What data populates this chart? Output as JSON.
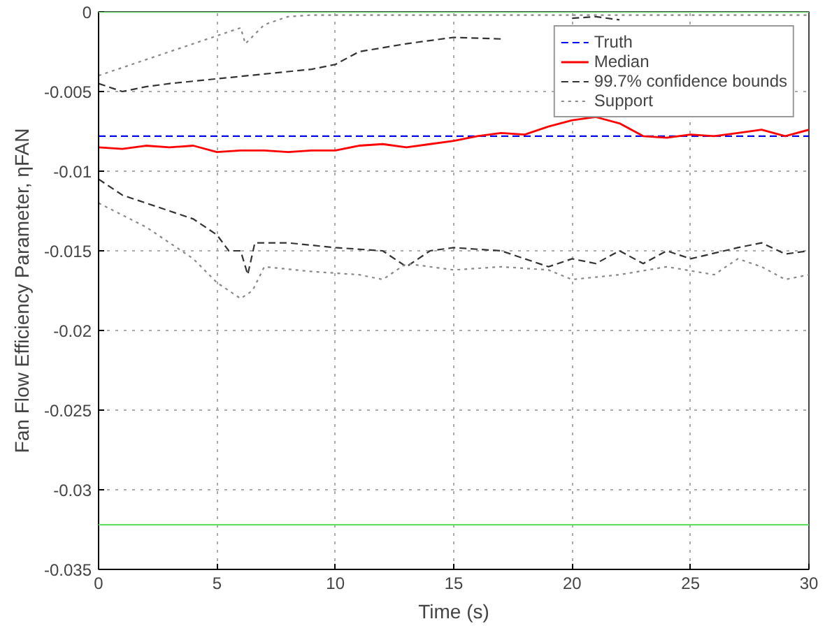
{
  "chart_data": {
    "type": "line",
    "xlabel": "Time (s)",
    "ylabel": "Fan Flow Efficiency Parameter, ηFAN",
    "xlim": [
      0,
      30
    ],
    "ylim": [
      -0.035,
      0
    ],
    "xticks": [
      0,
      5,
      10,
      15,
      20,
      25,
      30
    ],
    "yticks": [
      -0.035,
      -0.03,
      -0.025,
      -0.02,
      -0.015,
      -0.01,
      -0.005,
      0
    ],
    "grid": true,
    "legend": "top right",
    "ref_lines": [
      {
        "axis": "y",
        "value": 0,
        "color": "#66dd66"
      },
      {
        "axis": "y",
        "value": -0.0322,
        "color": "#66dd66"
      }
    ],
    "series": [
      {
        "name": "Truth",
        "color": "#0000ff",
        "line_style": "dashed",
        "x": [
          0,
          30
        ],
        "values": [
          -0.0078,
          -0.0078
        ]
      },
      {
        "name": "Median",
        "color": "#ff0000",
        "line_style": "solid",
        "x": [
          0,
          1,
          2,
          3,
          4,
          5,
          6,
          7,
          8,
          9,
          10,
          11,
          12,
          13,
          14,
          15,
          16,
          17,
          18,
          19,
          20,
          21,
          22,
          23,
          24,
          25,
          26,
          27,
          28,
          29,
          30
        ],
        "values": [
          -0.0085,
          -0.0086,
          -0.0084,
          -0.0085,
          -0.0084,
          -0.0088,
          -0.0087,
          -0.0087,
          -0.0088,
          -0.0087,
          -0.0087,
          -0.0084,
          -0.0083,
          -0.0085,
          -0.0083,
          -0.0081,
          -0.0078,
          -0.0076,
          -0.0077,
          -0.0072,
          -0.0068,
          -0.0066,
          -0.007,
          -0.0078,
          -0.0079,
          -0.0077,
          -0.0078,
          -0.0076,
          -0.0074,
          -0.0078,
          -0.0074
        ]
      },
      {
        "name": "99.7% confidence bounds",
        "color": "#333333",
        "line_style": "dashed",
        "x": [
          0,
          1,
          2,
          3,
          5,
          7,
          9,
          10,
          11,
          13,
          15,
          17,
          18,
          19,
          20,
          21,
          22
        ],
        "values": [
          -0.0045,
          -0.005,
          -0.0047,
          -0.0045,
          -0.0042,
          -0.0039,
          -0.0036,
          -0.0033,
          -0.0025,
          -0.002,
          -0.0016,
          -0.0017,
          null,
          null,
          -0.0004,
          -0.0003,
          -0.0005
        ]
      },
      {
        "color": "#333333",
        "line_style": "dashed",
        "x": [
          0,
          1,
          2,
          3,
          4,
          5,
          5.5,
          6,
          6.3,
          6.6,
          8,
          10,
          12,
          13,
          14,
          15,
          17,
          19,
          20,
          21,
          22,
          23,
          24,
          25,
          27,
          28,
          29,
          30
        ],
        "values": [
          -0.0105,
          -0.0115,
          -0.012,
          -0.0125,
          -0.013,
          -0.014,
          -0.015,
          -0.015,
          -0.0165,
          -0.0145,
          -0.0145,
          -0.0148,
          -0.015,
          -0.016,
          -0.015,
          -0.0148,
          -0.015,
          -0.016,
          -0.0155,
          -0.0158,
          -0.015,
          -0.0158,
          -0.015,
          -0.0155,
          -0.0148,
          -0.0145,
          -0.0152,
          -0.015
        ]
      },
      {
        "name": "Support",
        "color": "#888888",
        "line_style": "dotted",
        "x": [
          0,
          2,
          4,
          6,
          6.2,
          7,
          8,
          9,
          10,
          12,
          15,
          18,
          20,
          22,
          25,
          28,
          30
        ],
        "values": [
          -0.004,
          -0.003,
          -0.002,
          -0.001,
          -0.002,
          -0.0008,
          -0.0003,
          -0.0002,
          -0.0002,
          -0.0002,
          -0.0002,
          -0.0002,
          -0.0002,
          -0.0002,
          -0.0002,
          -0.0002,
          -0.0002
        ]
      },
      {
        "color": "#888888",
        "line_style": "dotted",
        "x": [
          0,
          2,
          4,
          5,
          6,
          6.5,
          7,
          9,
          11,
          12,
          13,
          15,
          17,
          19,
          20,
          22,
          24,
          26,
          27,
          28,
          29,
          30
        ],
        "values": [
          -0.012,
          -0.0135,
          -0.0155,
          -0.017,
          -0.018,
          -0.0175,
          -0.016,
          -0.0163,
          -0.0165,
          -0.0168,
          -0.0158,
          -0.0162,
          -0.016,
          -0.0162,
          -0.0168,
          -0.0165,
          -0.016,
          -0.0165,
          -0.0155,
          -0.016,
          -0.0168,
          -0.0165
        ]
      }
    ]
  }
}
